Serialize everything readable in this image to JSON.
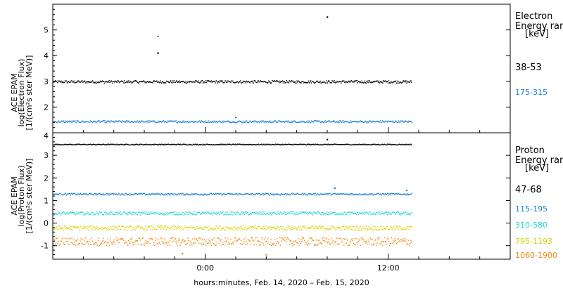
{
  "xaxis": {
    "label": "hours:minutes, Feb. 14, 2020 – Feb. 15, 2020",
    "range_hours": [
      -10,
      20
    ],
    "ticks": [
      {
        "hour": 0,
        "label": "0:00"
      },
      {
        "hour": 12,
        "label": "12:00"
      }
    ]
  },
  "chart_data": [
    {
      "type": "scatter",
      "panel": "electron",
      "ylabel": [
        "ACE EPAM",
        "log(Electron Flux)",
        "[1/(cm²s ster MeV)]"
      ],
      "ylim": [
        1.0,
        6.0
      ],
      "yticks": [
        2,
        3,
        4,
        5
      ],
      "legend_title": [
        "Electron",
        "Energy ran",
        "[keV]"
      ],
      "series": [
        {
          "name": "38-53",
          "color": "#000000",
          "level": 3.0,
          "noise": 0.05,
          "x_range": [
            -10,
            13.5
          ],
          "outliers": [
            {
              "x": 8.0,
              "y": 5.5
            },
            {
              "x": -3.1,
              "y": 4.1
            }
          ]
        },
        {
          "name": "175-315",
          "color": "#1e7fd6",
          "level": 1.45,
          "noise": 0.04,
          "x_range": [
            -10,
            13.5
          ],
          "outliers": [
            {
              "x": -3.1,
              "y": 4.75
            },
            {
              "x": 2.0,
              "y": 1.6
            }
          ]
        }
      ]
    },
    {
      "type": "scatter",
      "panel": "proton",
      "ylabel": [
        "ACE EPAM",
        "log(Proton Flux)",
        "[1/(cm²s ster MeV)]"
      ],
      "ylim": [
        -1.6,
        4.0
      ],
      "yticks": [
        -1,
        0,
        1,
        2,
        3
      ],
      "ytick_top_label": "4",
      "legend_title": [
        "Proton",
        "Energy ran",
        "[keV]"
      ],
      "series": [
        {
          "name": "47-68",
          "color": "#000000",
          "level": 3.5,
          "noise": 0.02,
          "x_range": [
            -10,
            13.5
          ],
          "outliers": [
            {
              "x": 8.0,
              "y": 3.7
            }
          ]
        },
        {
          "name": "115-195",
          "color": "#1e7fd6",
          "level": 1.3,
          "noise": 0.04,
          "x_range": [
            -10,
            13.5
          ],
          "outliers": [
            {
              "x": 8.5,
              "y": 1.55
            },
            {
              "x": 13.2,
              "y": 1.45
            }
          ]
        },
        {
          "name": "310-580",
          "color": "#22d6d6",
          "level": 0.45,
          "noise": 0.07,
          "x_range": [
            -10,
            13.5
          ],
          "outliers": []
        },
        {
          "name": "795-1193",
          "color": "#d4d400",
          "level": -0.2,
          "noise": 0.1,
          "x_range": [
            -10,
            13.5
          ],
          "outliers": []
        },
        {
          "name": "1060-1900",
          "color": "#f08a10",
          "level": -0.8,
          "noise": 0.18,
          "x_range": [
            -10,
            13.5
          ],
          "outliers": [
            {
              "x": -1.5,
              "y": -1.35
            },
            {
              "x": 4.0,
              "y": -1.4
            }
          ]
        }
      ]
    }
  ]
}
